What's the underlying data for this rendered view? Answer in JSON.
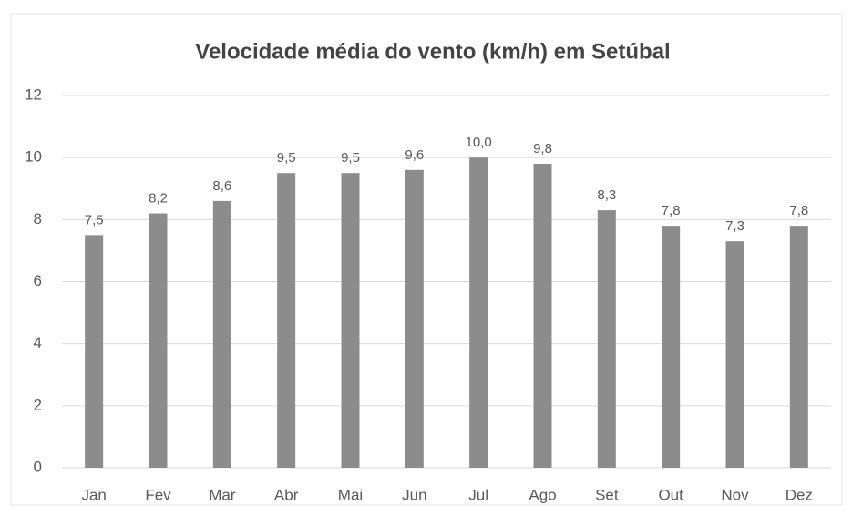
{
  "chart_data": {
    "type": "bar",
    "title": "Velocidade média do vento (km/h) em Setúbal",
    "categories": [
      "Jan",
      "Fev",
      "Mar",
      "Abr",
      "Mai",
      "Jun",
      "Jul",
      "Ago",
      "Set",
      "Out",
      "Nov",
      "Dez"
    ],
    "values": [
      7.5,
      8.2,
      8.6,
      9.5,
      9.5,
      9.6,
      10.0,
      9.8,
      8.3,
      7.8,
      7.3,
      7.8
    ],
    "value_labels": [
      "7,5",
      "8,2",
      "8,6",
      "9,5",
      "9,5",
      "9,6",
      "10,0",
      "9,8",
      "8,3",
      "7,8",
      "7,3",
      "7,8"
    ],
    "color": "#8c8c8c",
    "ylim": [
      0,
      12
    ],
    "yticks": [
      0,
      2,
      4,
      6,
      8,
      10,
      12
    ],
    "grid": true
  }
}
